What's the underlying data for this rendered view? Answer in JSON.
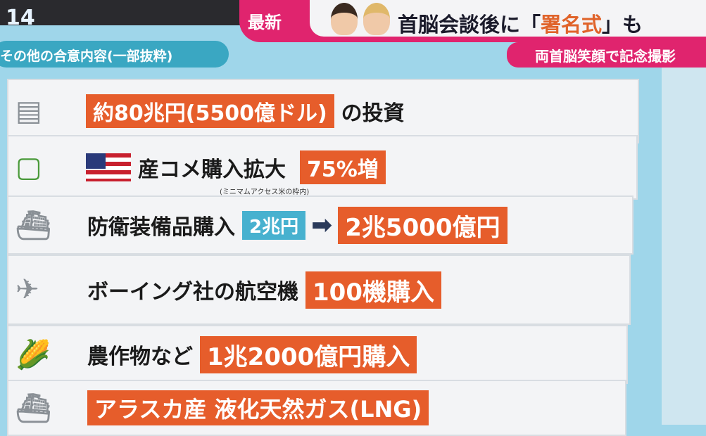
{
  "broadcast": {
    "channel": "14",
    "badge": "最新",
    "headline_pre": "首脳会談後に「",
    "headline_hl": "署名式",
    "headline_post": "」も",
    "subline": "両首脳笑顔で記念撮影"
  },
  "section_title": "その他の合意内容(一部抜粋)",
  "items": [
    {
      "icon": "money-stack-icon",
      "tag": "約80兆円(5500億ドル)",
      "text": "の投資"
    },
    {
      "icon": "rice-bag-icon",
      "text": "産コメ購入拡大",
      "note": "(ミニマムアクセス米の枠内)",
      "tag": "75%増"
    },
    {
      "icon": "warship-icon",
      "text": "防衛装備品購入",
      "from": "2兆円",
      "tag": "2兆5000億円"
    },
    {
      "icon": "airplane-icon",
      "text": "ボーイング社の航空機",
      "tag": "100機購入"
    },
    {
      "icon": "crops-icon",
      "text": "農作物など",
      "tag": "1兆2000億円購入"
    },
    {
      "icon": "lng-tanker-icon",
      "tag": "アラスカ産 液化天然ガス(LNG)"
    }
  ],
  "colors": {
    "accent": "#e65d2b",
    "pink": "#e0246e",
    "blue": "#47b1cf"
  }
}
